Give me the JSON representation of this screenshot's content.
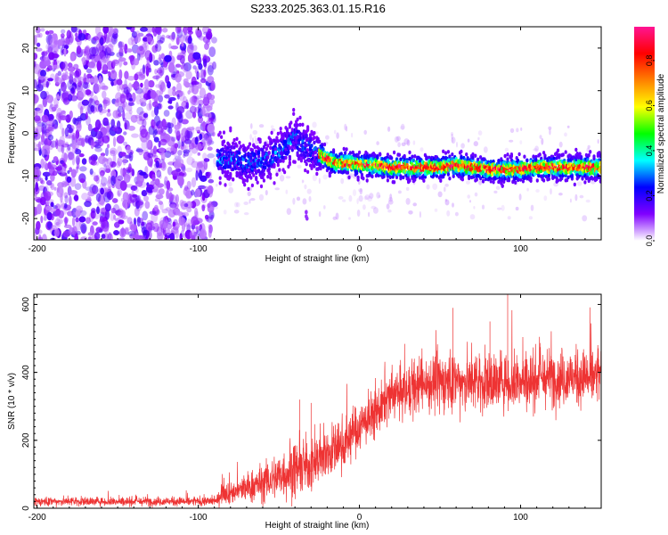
{
  "title": "S233.2025.363.01.15.R16",
  "chart_data": [
    {
      "type": "heatmap",
      "xlabel": "Height of straight line (km)",
      "ylabel": "Frequency (Hz)",
      "xlim": [
        -202,
        150
      ],
      "ylim": [
        -25,
        25
      ],
      "x_ticks": [
        -200,
        -100,
        0,
        100
      ],
      "y_ticks": [
        -20,
        -10,
        0,
        10,
        20
      ],
      "noise_region_x": [
        -202,
        -90
      ],
      "signal_track": {
        "x": [
          -88,
          -80,
          -70,
          -60,
          -50,
          -45,
          -40,
          -37,
          -34,
          -30,
          -25,
          -20,
          -15,
          -10,
          -5,
          0,
          10,
          20,
          30,
          40,
          50,
          60,
          70,
          80,
          90,
          100,
          110,
          120,
          130,
          140,
          150
        ],
        "freq": [
          -6,
          -6,
          -7,
          -6.5,
          -4.5,
          -3,
          -1,
          -2,
          -3,
          -4,
          -5,
          -6,
          -7,
          -7,
          -7,
          -7.5,
          -7.5,
          -8,
          -8,
          -8,
          -8,
          -7.5,
          -8,
          -8.5,
          -8.5,
          -8.5,
          -8,
          -8,
          -8,
          -8,
          -8
        ]
      },
      "colorbar": {
        "label": "Normalized spectral amplitude",
        "range": [
          0,
          0.95
        ],
        "ticks": [
          0.0,
          0.2,
          0.4,
          0.6,
          0.8
        ],
        "tick_labels": [
          "0.0",
          "0.2",
          "0.4",
          "0.6",
          "0.8"
        ],
        "colors": [
          "#ffffff",
          "#8000ff",
          "#0000ff",
          "#00ffff",
          "#00ff00",
          "#ffff00",
          "#ff8000",
          "#ff0000",
          "#ff1493"
        ]
      }
    },
    {
      "type": "line",
      "xlabel": "Height of straight line (km)",
      "ylabel": "SNR (10 * v/v)",
      "xlim": [
        -202,
        150
      ],
      "ylim": [
        0,
        630
      ],
      "x_ticks": [
        -200,
        -100,
        0,
        100
      ],
      "y_ticks": [
        0,
        200,
        400,
        600
      ],
      "color": "#ee3333",
      "series": [
        {
          "x": [
            -202,
            -150,
            -100,
            -88,
            -85,
            -80,
            -70,
            -60,
            -50,
            -40,
            -30,
            -20,
            -10,
            0,
            10,
            20,
            30,
            40,
            50,
            60,
            70,
            80,
            90,
            100,
            110,
            120,
            130,
            140,
            150
          ],
          "mean": [
            20,
            20,
            20,
            22,
            55,
            45,
            60,
            75,
            95,
            115,
            130,
            160,
            190,
            240,
            280,
            330,
            340,
            370,
            370,
            375,
            370,
            370,
            375,
            375,
            380,
            385,
            385,
            385,
            390
          ],
          "spread": [
            12,
            12,
            12,
            15,
            35,
            30,
            40,
            50,
            65,
            75,
            70,
            70,
            70,
            65,
            65,
            65,
            70,
            75,
            80,
            80,
            80,
            80,
            80,
            80,
            75,
            75,
            75,
            75,
            75
          ]
        }
      ],
      "peaks": [
        {
          "x": -37,
          "y": 320
        },
        {
          "x": -30,
          "y": 310
        },
        {
          "x": 58,
          "y": 590
        },
        {
          "x": 92,
          "y": 630
        },
        {
          "x": 81,
          "y": 550
        }
      ]
    }
  ]
}
